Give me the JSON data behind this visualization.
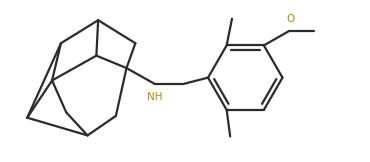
{
  "bg_color": "#ffffff",
  "line_color": "#2b2b2b",
  "line_width": 1.6,
  "nh_color": "#b8860b",
  "o_color": "#b8860b",
  "figsize": [
    3.7,
    1.62
  ],
  "dpi": 100
}
